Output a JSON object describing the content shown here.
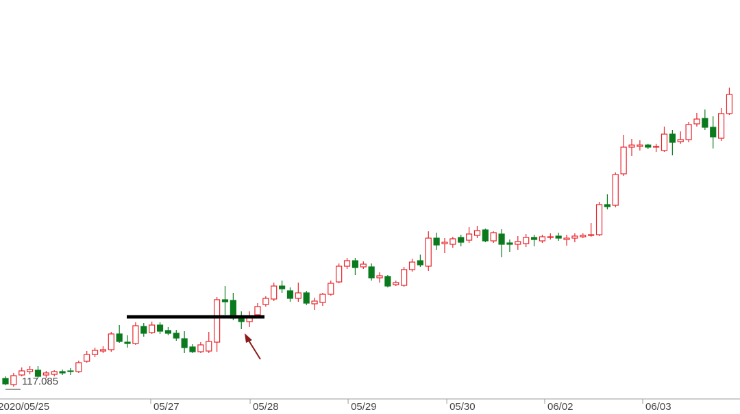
{
  "chart_data": {
    "type": "candlestick",
    "up_color": "#e8232a",
    "down_color": "#0b7a1f",
    "open": [
      117.185,
      117.095,
      117.235,
      117.285,
      117.305,
      117.235,
      117.245,
      117.285,
      117.295,
      117.285,
      117.435,
      117.535,
      117.585,
      117.605,
      117.835,
      117.715,
      117.695,
      117.945,
      117.855,
      117.965,
      117.885,
      117.845,
      117.765,
      117.645,
      117.575,
      117.585,
      117.715,
      118.335,
      118.325,
      118.085,
      118.015,
      118.115,
      118.265,
      118.345,
      118.535,
      118.465,
      118.355,
      118.435,
      118.275,
      118.295,
      118.415,
      118.595,
      118.825,
      118.905,
      118.815,
      118.815,
      118.655,
      118.675,
      118.555,
      118.545,
      118.775,
      118.905,
      118.825,
      119.235,
      119.155,
      119.145,
      119.245,
      119.205,
      119.275,
      119.355,
      119.195,
      119.295,
      119.165,
      119.145,
      119.155,
      119.245,
      119.195,
      119.245,
      119.265,
      119.215,
      119.235,
      119.255,
      119.275,
      119.285,
      119.725,
      119.715,
      120.175,
      120.565,
      120.575,
      120.595,
      120.565,
      120.515,
      120.755,
      120.645,
      120.675,
      120.905,
      120.985,
      120.855,
      120.695,
      121.055
    ],
    "high": [
      117.215,
      117.265,
      117.345,
      117.365,
      117.365,
      117.295,
      117.305,
      117.315,
      117.335,
      117.445,
      117.585,
      117.635,
      117.655,
      117.865,
      117.965,
      117.815,
      118.005,
      117.995,
      118.015,
      118.005,
      117.935,
      117.895,
      117.875,
      117.685,
      117.715,
      117.865,
      118.375,
      118.535,
      118.435,
      118.165,
      118.165,
      118.285,
      118.385,
      118.585,
      118.615,
      118.515,
      118.585,
      118.465,
      118.365,
      118.435,
      118.615,
      118.865,
      118.945,
      118.945,
      118.895,
      118.865,
      118.735,
      118.695,
      118.615,
      118.815,
      118.935,
      118.995,
      119.335,
      119.315,
      119.235,
      119.255,
      119.285,
      119.395,
      119.415,
      119.375,
      119.335,
      119.365,
      119.215,
      119.265,
      119.295,
      119.285,
      119.285,
      119.305,
      119.315,
      119.285,
      119.305,
      119.305,
      119.455,
      119.765,
      119.875,
      120.195,
      120.745,
      120.685,
      120.665,
      120.615,
      120.615,
      120.865,
      120.815,
      120.795,
      120.935,
      121.065,
      121.115,
      121.015,
      121.135,
      121.435
    ],
    "low": [
      117.085,
      117.065,
      117.215,
      117.245,
      117.195,
      117.195,
      117.215,
      117.235,
      117.235,
      117.265,
      117.415,
      117.495,
      117.555,
      117.575,
      117.705,
      117.635,
      117.675,
      117.795,
      117.835,
      117.835,
      117.815,
      117.735,
      117.555,
      117.555,
      117.555,
      117.555,
      117.575,
      118.115,
      118.035,
      117.905,
      117.935,
      118.085,
      118.235,
      118.315,
      118.435,
      118.305,
      118.305,
      118.255,
      118.185,
      118.245,
      118.395,
      118.575,
      118.785,
      118.695,
      118.785,
      118.615,
      118.585,
      118.515,
      118.535,
      118.525,
      118.745,
      118.815,
      118.755,
      119.065,
      119.015,
      119.095,
      119.115,
      119.165,
      119.235,
      119.175,
      119.165,
      118.955,
      119.035,
      119.065,
      119.105,
      119.115,
      119.165,
      119.215,
      119.195,
      119.125,
      119.175,
      119.235,
      119.255,
      119.265,
      119.655,
      119.685,
      120.145,
      120.435,
      120.515,
      120.535,
      120.495,
      120.495,
      120.445,
      120.615,
      120.635,
      120.865,
      120.815,
      120.545,
      120.655,
      121.035
    ],
    "close": [
      117.105,
      117.225,
      117.295,
      117.315,
      117.215,
      117.265,
      117.285,
      117.265,
      117.285,
      117.415,
      117.535,
      117.595,
      117.605,
      117.835,
      117.725,
      117.695,
      117.955,
      117.845,
      117.965,
      117.875,
      117.845,
      117.775,
      117.635,
      117.575,
      117.675,
      117.725,
      118.335,
      118.305,
      118.065,
      118.015,
      118.095,
      118.235,
      118.355,
      118.535,
      118.495,
      118.355,
      118.435,
      118.285,
      118.315,
      118.415,
      118.575,
      118.825,
      118.905,
      118.805,
      118.855,
      118.655,
      118.685,
      118.535,
      118.585,
      118.775,
      118.885,
      118.845,
      119.235,
      119.135,
      119.175,
      119.225,
      119.175,
      119.295,
      119.345,
      119.195,
      119.315,
      119.145,
      119.145,
      119.185,
      119.245,
      119.215,
      119.255,
      119.255,
      119.235,
      119.235,
      119.265,
      119.275,
      119.285,
      119.725,
      119.695,
      120.165,
      120.565,
      120.595,
      120.595,
      120.565,
      120.575,
      120.755,
      120.635,
      120.675,
      120.895,
      120.975,
      120.855,
      120.715,
      121.055,
      121.335
    ],
    "xlim": [
      -0.674,
      90.31
    ],
    "ylim": [
      116.885,
      122.715
    ],
    "xticks": [
      {
        "value": -1.25,
        "label": "2020/05/25"
      },
      {
        "value": 17.86,
        "label": "05/27"
      },
      {
        "value": 30.08,
        "label": "05/28"
      },
      {
        "value": 42.13,
        "label": "05/29"
      },
      {
        "value": 54.26,
        "label": "05/30"
      },
      {
        "value": 66.3,
        "label": "06/02"
      },
      {
        "value": 78.35,
        "label": "06/03"
      }
    ],
    "low_marker": 117.085,
    "level_line": 118.085
  }
}
